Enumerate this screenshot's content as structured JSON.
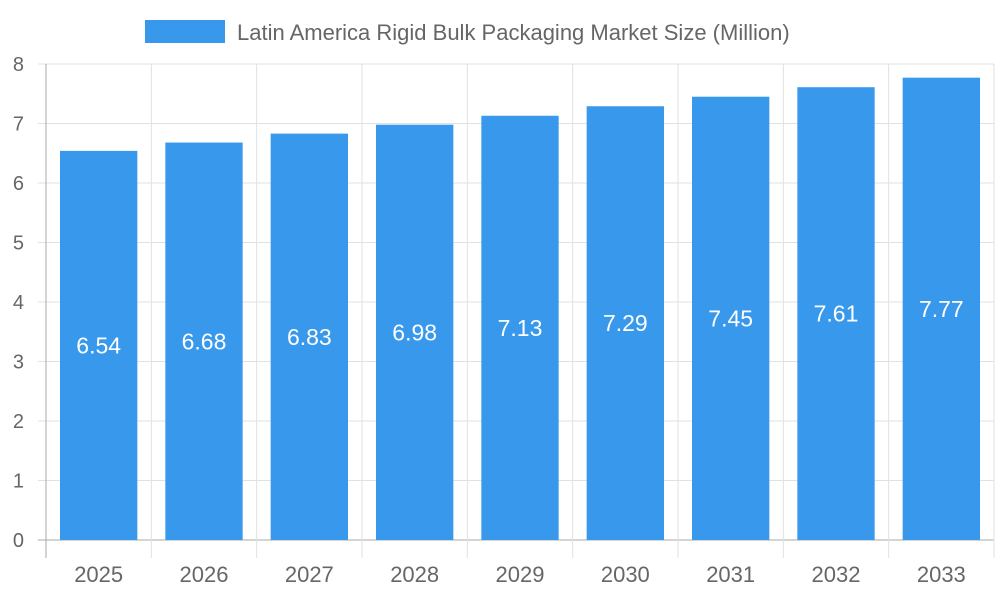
{
  "chart_data": {
    "type": "bar",
    "title": "",
    "xlabel": "",
    "ylabel": "",
    "legend": {
      "position": "top",
      "entries": [
        "Latin America Rigid Bulk Packaging Market Size (Million)"
      ]
    },
    "categories": [
      "2025",
      "2026",
      "2027",
      "2028",
      "2029",
      "2030",
      "2031",
      "2032",
      "2033"
    ],
    "series": [
      {
        "name": "Latin America Rigid Bulk Packaging Market Size (Million)",
        "values": [
          6.54,
          6.68,
          6.83,
          6.98,
          7.13,
          7.29,
          7.45,
          7.61,
          7.77
        ],
        "data_labels": [
          "6.54",
          "6.68",
          "6.83",
          "6.98",
          "7.13",
          "7.29",
          "7.45",
          "7.61",
          "7.77"
        ]
      }
    ],
    "ylim": [
      0,
      8
    ],
    "yticks": [
      "0",
      "1",
      "2",
      "3",
      "4",
      "5",
      "6",
      "7",
      "8"
    ],
    "grid": true,
    "colors": {
      "bar": "#3899ec",
      "label": "#ffffff",
      "tick_text": "#666666",
      "grid": "#e1e1e1"
    }
  }
}
